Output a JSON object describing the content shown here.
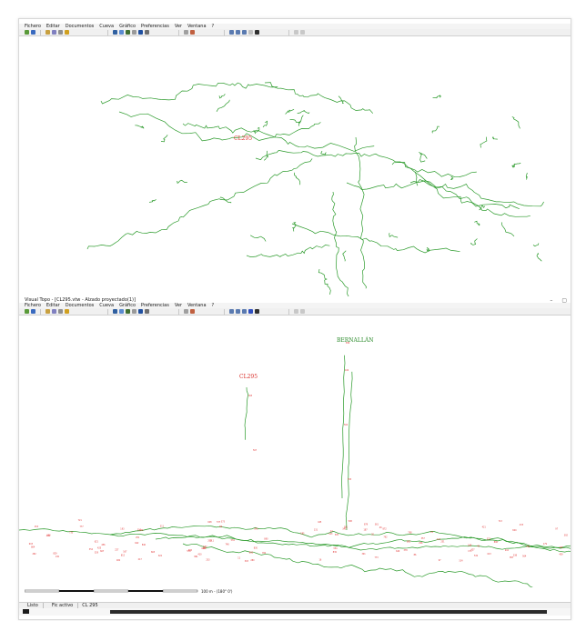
{
  "menu": [
    "Fichero",
    "Editar",
    "Documentos",
    "Cueva",
    "Gráfico",
    "Preferencias",
    "Ver",
    "Ventana",
    "?"
  ],
  "title": "Visual Topo - [CL295.vtw - Alzado proyectado(1)]",
  "top_view": {
    "label": "CL295"
  },
  "bottom_view": {
    "label_cave": "CL295",
    "label_entrance": "BERNALLÁN"
  },
  "scale_label": "100 m - (180° 0')",
  "status": {
    "ready": "Listo",
    "active_file_label": "Fic activo",
    "active_file": "CL 295"
  },
  "colors": {
    "survey": "#2a9a2a",
    "stations": "#e03030",
    "label_red": "#d9302c",
    "label_green": "#2a8a2a"
  }
}
